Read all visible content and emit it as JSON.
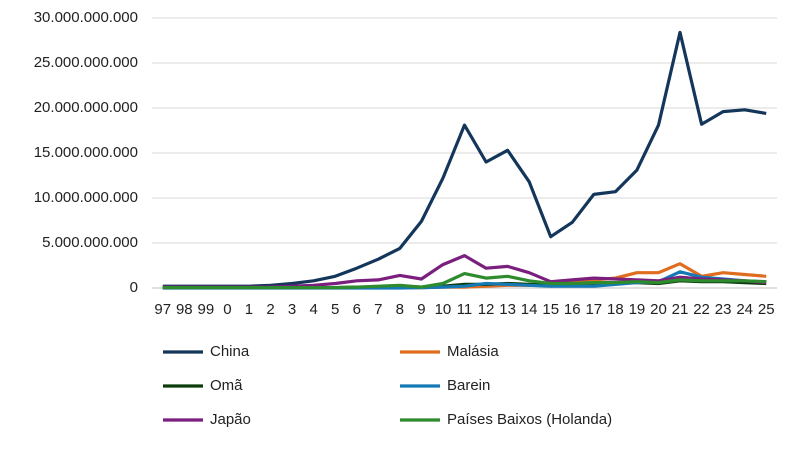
{
  "chart_data": {
    "type": "line",
    "categories": [
      "97",
      "98",
      "99",
      "0",
      "1",
      "2",
      "3",
      "4",
      "5",
      "6",
      "7",
      "8",
      "9",
      "10",
      "11",
      "12",
      "13",
      "14",
      "15",
      "16",
      "17",
      "18",
      "19",
      "20",
      "21",
      "22",
      "23",
      "24",
      "25"
    ],
    "ylim": [
      0,
      30000000000
    ],
    "yticks": [
      0,
      {
        "value": 5000000000,
        "label": "5.000.000.000"
      },
      {
        "value": 10000000000,
        "label": "10.000.000.000"
      },
      {
        "value": 15000000000,
        "label": "15.000.000.000"
      },
      {
        "value": 20000000000,
        "label": "20.000.000.000"
      },
      {
        "value": 25000000000,
        "label": "25.000.000.000"
      },
      {
        "value": 30000000000,
        "label": "30.000.000.000"
      }
    ],
    "grid": true,
    "legend": "bottom",
    "series": [
      {
        "name": "China",
        "color": "#14365a",
        "values": [
          200000000,
          200000000,
          200000000,
          200000000,
          200000000,
          300000000,
          500000000,
          800000000,
          1300000000,
          2200000000,
          3200000000,
          4400000000,
          7400000000,
          12200000000,
          18100000000,
          14000000000,
          15300000000,
          11800000000,
          5700000000,
          7300000000,
          10400000000,
          10700000000,
          13100000000,
          18100000000,
          28400000000,
          18200000000,
          19600000000,
          19800000000,
          19400000000
        ]
      },
      {
        "name": "Malásia",
        "color": "#e06c1f",
        "values": [
          50000000,
          50000000,
          50000000,
          50000000,
          50000000,
          50000000,
          50000000,
          50000000,
          50000000,
          50000000,
          50000000,
          50000000,
          50000000,
          100000000,
          100000000,
          200000000,
          300000000,
          300000000,
          500000000,
          600000000,
          900000000,
          1100000000,
          1700000000,
          1700000000,
          2700000000,
          1300000000,
          1700000000,
          1500000000,
          1300000000
        ]
      },
      {
        "name": "Omã",
        "color": "#0b3d0b",
        "values": [
          50000000,
          50000000,
          50000000,
          50000000,
          50000000,
          50000000,
          50000000,
          50000000,
          50000000,
          100000000,
          100000000,
          200000000,
          100000000,
          200000000,
          400000000,
          400000000,
          500000000,
          400000000,
          300000000,
          400000000,
          500000000,
          500000000,
          600000000,
          500000000,
          800000000,
          700000000,
          700000000,
          600000000,
          500000000
        ]
      },
      {
        "name": "Barein",
        "color": "#1479b5",
        "values": [
          0,
          0,
          0,
          0,
          0,
          0,
          0,
          0,
          0,
          0,
          0,
          0,
          50000000,
          100000000,
          200000000,
          500000000,
          400000000,
          300000000,
          200000000,
          200000000,
          200000000,
          400000000,
          600000000,
          700000000,
          1800000000,
          1200000000,
          1000000000,
          800000000,
          700000000
        ]
      },
      {
        "name": "Japão",
        "color": "#7b1f7e",
        "values": [
          100000000,
          100000000,
          100000000,
          100000000,
          100000000,
          100000000,
          200000000,
          300000000,
          500000000,
          800000000,
          900000000,
          1400000000,
          1000000000,
          2600000000,
          3600000000,
          2200000000,
          2400000000,
          1700000000,
          700000000,
          900000000,
          1100000000,
          1000000000,
          900000000,
          800000000,
          1200000000,
          1000000000,
          900000000,
          800000000,
          600000000
        ]
      },
      {
        "name": "Países Baixos (Holanda)",
        "color": "#2e8b2e",
        "values": [
          50000000,
          50000000,
          50000000,
          50000000,
          50000000,
          50000000,
          50000000,
          50000000,
          50000000,
          100000000,
          200000000,
          300000000,
          100000000,
          500000000,
          1600000000,
          1100000000,
          1300000000,
          800000000,
          500000000,
          500000000,
          600000000,
          600000000,
          700000000,
          600000000,
          900000000,
          800000000,
          800000000,
          800000000,
          700000000
        ]
      }
    ]
  }
}
